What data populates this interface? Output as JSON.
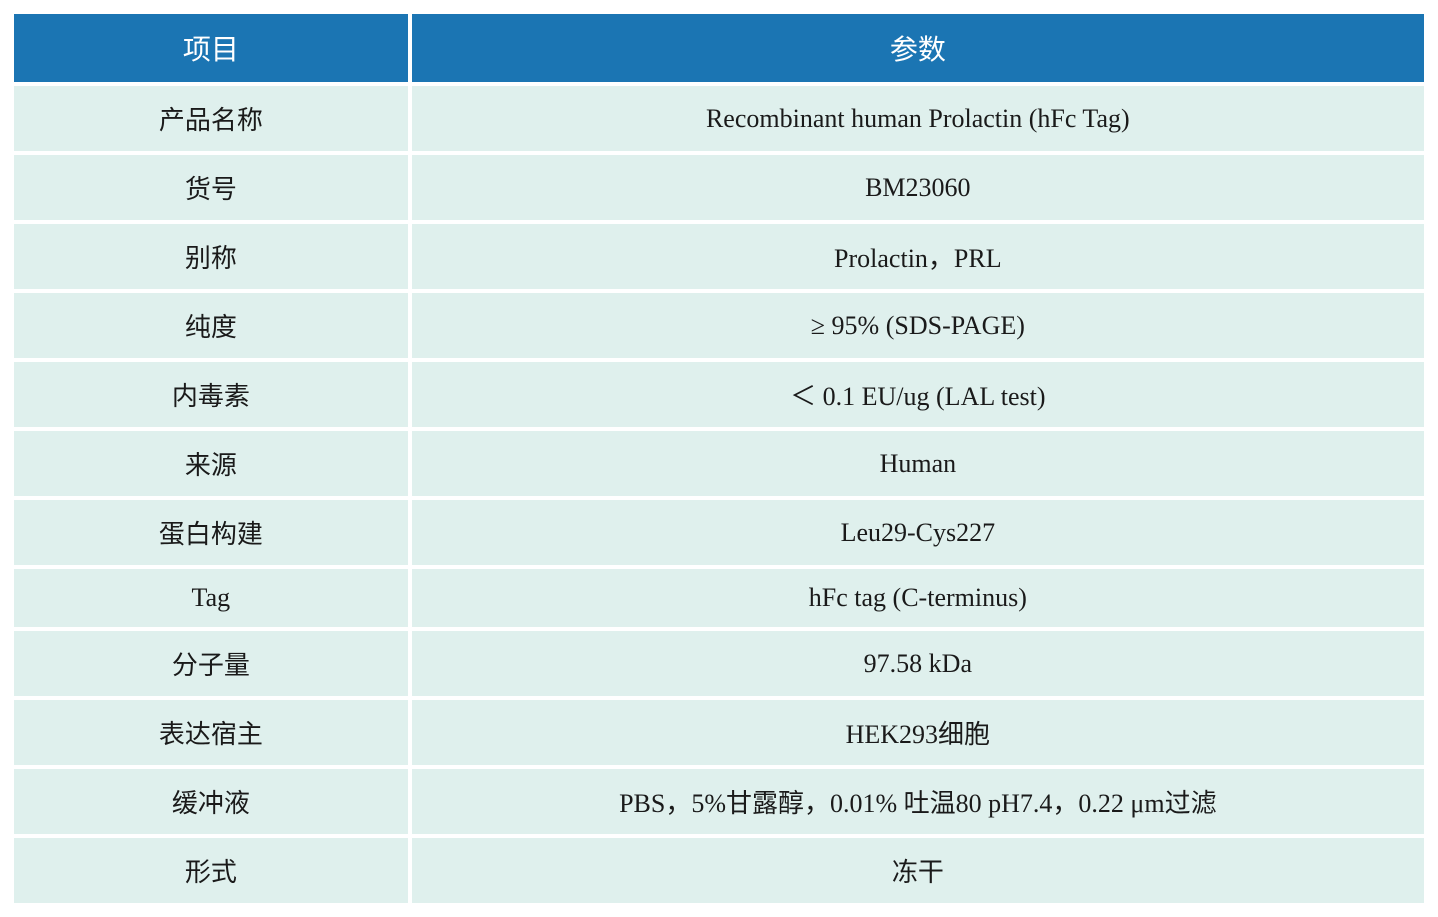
{
  "table": {
    "header_bg": "#1b75b3",
    "header_text_color": "#ffffff",
    "cell_bg": "#dff0ed",
    "cell_text_color": "#1a1a1a",
    "border_spacing": 4,
    "header_fontsize": 28,
    "cell_fontsize": 26,
    "col_widths": [
      "28%",
      "72%"
    ],
    "columns": [
      "项目",
      "参数"
    ],
    "rows": [
      [
        "产品名称",
        "Recombinant human Prolactin (hFc Tag)"
      ],
      [
        "货号",
        "BM23060"
      ],
      [
        "别称",
        "Prolactin，PRL"
      ],
      [
        "纯度",
        "≥ 95% (SDS-PAGE)"
      ],
      [
        "内毒素",
        "＜ 0.1 EU/ug (LAL test)"
      ],
      [
        "来源",
        "Human"
      ],
      [
        "蛋白构建",
        "Leu29-Cys227"
      ],
      [
        "Tag",
        "hFc tag (C-terminus)"
      ],
      [
        "分子量",
        "97.58 kDa"
      ],
      [
        "表达宿主",
        "HEK293细胞"
      ],
      [
        "缓冲液",
        "PBS，5%甘露醇，0.01% 吐温80 pH7.4，0.22 μm过滤"
      ],
      [
        "形式",
        "冻干"
      ]
    ]
  }
}
